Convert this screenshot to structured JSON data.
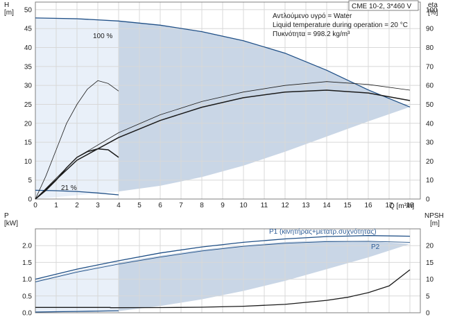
{
  "chart_data": [
    {
      "type": "line",
      "title": "CME 10-2, 3*460 V",
      "annotations": [
        "Αντλούμενο υγρό = Water",
        "Liquid temperature during operation = 20 °C",
        "Πυκνότητα = 998.2 kg/m³"
      ],
      "xlabel": "Q [m³/h]",
      "xlim": [
        0,
        18.5
      ],
      "xticks": [
        0,
        1,
        2,
        3,
        4,
        5,
        6,
        7,
        8,
        9,
        10,
        11,
        12,
        13,
        14,
        15,
        16,
        17,
        18
      ],
      "ylabel_left": "H",
      "ylabel_left_unit": "[m]",
      "ylim_left": [
        0,
        52
      ],
      "yticks_left": [
        0,
        5,
        10,
        15,
        20,
        25,
        30,
        35,
        40,
        45,
        50
      ],
      "ylabel_right": "eta",
      "ylabel_right_unit": "[%]",
      "ylim_right": [
        0,
        104
      ],
      "yticks_right": [
        0,
        10,
        20,
        30,
        40,
        50,
        60,
        70,
        80,
        90,
        100
      ],
      "grid": true,
      "curve_labels": [
        {
          "text": "100 %",
          "x": 3.1,
          "y": 48.5
        },
        {
          "text": "21 %",
          "x": 1.8,
          "y": 3.0
        }
      ],
      "operating_region": {
        "top_curve": [
          [
            0,
            47.8
          ],
          [
            2,
            47.6
          ],
          [
            4,
            47.0
          ],
          [
            6,
            45.9
          ],
          [
            8,
            44.2
          ],
          [
            10,
            41.8
          ],
          [
            12,
            38.5
          ],
          [
            14,
            34.0
          ],
          [
            16,
            28.8
          ],
          [
            18,
            24.3
          ]
        ],
        "bottom_curve": [
          [
            4,
            2.0
          ],
          [
            6,
            3.5
          ],
          [
            8,
            5.8
          ],
          [
            10,
            8.8
          ],
          [
            12,
            12.5
          ],
          [
            14,
            16.5
          ],
          [
            16,
            20.5
          ],
          [
            18,
            24.3
          ]
        ],
        "left_boundary": [
          [
            4,
            2.0
          ],
          [
            4,
            47.0
          ]
        ],
        "light_region": [
          [
            0,
            47.8
          ],
          [
            4,
            47.0
          ],
          [
            4,
            2.0
          ],
          [
            0,
            0
          ]
        ]
      },
      "series": [
        {
          "name": "H 100 %",
          "axis": "left",
          "color": "#1f4f86",
          "width": 1.3,
          "values": [
            [
              0,
              47.8
            ],
            [
              2,
              47.6
            ],
            [
              4,
              47.0
            ],
            [
              6,
              45.9
            ],
            [
              8,
              44.2
            ],
            [
              10,
              41.8
            ],
            [
              12,
              38.5
            ],
            [
              14,
              34.0
            ],
            [
              16,
              28.8
            ],
            [
              18,
              24.3
            ]
          ]
        },
        {
          "name": "H 21 %",
          "axis": "left",
          "color": "#1f4f86",
          "width": 1.3,
          "values": [
            [
              0,
              2.3
            ],
            [
              1,
              2.2
            ],
            [
              2,
              2.0
            ],
            [
              3,
              1.6
            ],
            [
              4,
              1.1
            ]
          ]
        },
        {
          "name": "eta 100 % (thin)",
          "axis": "right",
          "color": "#1a1a1a",
          "width": 0.8,
          "values": [
            [
              0,
              0
            ],
            [
              2,
              22
            ],
            [
              4,
              35
            ],
            [
              6,
              44.5
            ],
            [
              8,
              51.5
            ],
            [
              10,
              56.5
            ],
            [
              12,
              60
            ],
            [
              14,
              62
            ],
            [
              16,
              60.5
            ],
            [
              18,
              57.5
            ]
          ]
        },
        {
          "name": "eta 100 % (thick)",
          "axis": "right",
          "color": "#1a1a1a",
          "width": 1.5,
          "values": [
            [
              0,
              0
            ],
            [
              2,
              20.5
            ],
            [
              4,
              32.5
            ],
            [
              6,
              41.5
            ],
            [
              8,
              48.5
            ],
            [
              10,
              53.5
            ],
            [
              12,
              56.5
            ],
            [
              14,
              57.5
            ],
            [
              16,
              56
            ],
            [
              18,
              52
            ]
          ]
        },
        {
          "name": "eta 21 % (thin)",
          "axis": "right",
          "color": "#1a1a1a",
          "width": 0.8,
          "values": [
            [
              0,
              0
            ],
            [
              0.5,
              12
            ],
            [
              1,
              26
            ],
            [
              1.5,
              40
            ],
            [
              2,
              50
            ],
            [
              2.5,
              58
            ],
            [
              3,
              62.5
            ],
            [
              3.5,
              61
            ],
            [
              4,
              57
            ]
          ]
        },
        {
          "name": "eta 21 % (thick)",
          "axis": "right",
          "color": "#1a1a1a",
          "width": 1.5,
          "values": [
            [
              0,
              0
            ],
            [
              0.5,
              4.5
            ],
            [
              1,
              10
            ],
            [
              1.5,
              16.5
            ],
            [
              2,
              22
            ],
            [
              2.5,
              25
            ],
            [
              3,
              26.5
            ],
            [
              3.5,
              26
            ],
            [
              4,
              22
            ]
          ]
        }
      ]
    },
    {
      "type": "line",
      "xlim": [
        0,
        18.5
      ],
      "ylabel_left": "P",
      "ylabel_left_unit": "[kW]",
      "ylim_left": [
        0,
        2.5
      ],
      "yticks_left": [
        0.0,
        0.5,
        1.0,
        1.5,
        2.0
      ],
      "ylabel_right": "NPSH",
      "ylabel_right_unit": "[m]",
      "ylim_right": [
        0,
        25
      ],
      "yticks_right": [
        0,
        5,
        10,
        15,
        20
      ],
      "grid": true,
      "operating_region": {
        "top_curve": [
          [
            0,
            0.95
          ],
          [
            2,
            1.25
          ],
          [
            4,
            1.5
          ],
          [
            6,
            1.7
          ],
          [
            8,
            1.88
          ],
          [
            10,
            2.01
          ],
          [
            12,
            2.11
          ],
          [
            14,
            2.15
          ],
          [
            16,
            2.13
          ],
          [
            18,
            2.05
          ]
        ],
        "bottom_curve": [
          [
            4,
            0.05
          ],
          [
            6,
            0.2
          ],
          [
            8,
            0.4
          ],
          [
            10,
            0.65
          ],
          [
            12,
            0.95
          ],
          [
            14,
            1.3
          ],
          [
            16,
            1.65
          ],
          [
            18,
            2.05
          ]
        ],
        "light_region": [
          [
            0,
            0.95
          ],
          [
            4,
            1.5
          ],
          [
            4,
            0.05
          ],
          [
            0,
            0
          ]
        ]
      },
      "series": [
        {
          "name": "P1 (κινητήρας+μετατρ.συχνότητας)",
          "axis": "left",
          "color": "#1f4f86",
          "width": 1.3,
          "values": [
            [
              0,
              1.0
            ],
            [
              2,
              1.3
            ],
            [
              4,
              1.55
            ],
            [
              6,
              1.78
            ],
            [
              8,
              1.96
            ],
            [
              10,
              2.1
            ],
            [
              12,
              2.2
            ],
            [
              14,
              2.27
            ],
            [
              16,
              2.3
            ],
            [
              18,
              2.28
            ]
          ]
        },
        {
          "name": "P2",
          "axis": "left",
          "color": "#1f4f86",
          "width": 0.9,
          "values": [
            [
              0,
              0.92
            ],
            [
              2,
              1.21
            ],
            [
              4,
              1.45
            ],
            [
              6,
              1.66
            ],
            [
              8,
              1.84
            ],
            [
              10,
              1.98
            ],
            [
              12,
              2.07
            ],
            [
              14,
              2.12
            ],
            [
              16,
              2.13
            ],
            [
              18,
              2.1
            ]
          ]
        },
        {
          "name": "P 21 %",
          "axis": "left",
          "color": "#1f4f86",
          "width": 1.3,
          "values": [
            [
              0,
              0.02
            ],
            [
              1,
              0.03
            ],
            [
              2,
              0.04
            ],
            [
              3,
              0.05
            ],
            [
              4,
              0.06
            ]
          ]
        },
        {
          "name": "NPSH",
          "axis": "right",
          "color": "#1a1a1a",
          "width": 1.3,
          "values": [
            [
              0,
              1.6
            ],
            [
              3.6,
              1.6
            ],
            [
              3.6,
              1.5
            ],
            [
              6,
              1.55
            ],
            [
              8,
              1.65
            ],
            [
              10,
              1.95
            ],
            [
              12,
              2.5
            ],
            [
              14,
              3.7
            ],
            [
              15,
              4.6
            ],
            [
              16,
              6.0
            ],
            [
              17,
              8.0
            ],
            [
              18,
              12.8
            ]
          ]
        }
      ]
    }
  ],
  "ui": {
    "title": "CME 10-2, 3*460 V",
    "info_lines": [
      "Αντλούμενο υγρό = Water",
      "Liquid temperature during operation = 20 °C",
      "Πυκνότητα = 998.2 kg/m³"
    ],
    "top_left_axis_label": "H",
    "top_left_axis_unit": "[m]",
    "top_right_axis_label": "eta",
    "top_right_axis_unit": "[%]",
    "x_axis_label": "Q [m³/h]",
    "bottom_left_axis_label": "P",
    "bottom_left_axis_unit": "[kW]",
    "bottom_right_axis_label": "NPSH",
    "bottom_right_axis_unit": "[m]",
    "label_100": "100 %",
    "label_21": "21 %",
    "label_p1": "P1 (κινητήρας+μετατρ.συχνότητας)",
    "label_p2": "P2"
  },
  "colors": {
    "region_dark": "#c9d6e6",
    "region_light": "#e9f0f9",
    "grid": "#d8d8d8",
    "blue_curve": "#1f4f86",
    "black_curve": "#1a1a1a",
    "frame": "#7f7f7f"
  }
}
